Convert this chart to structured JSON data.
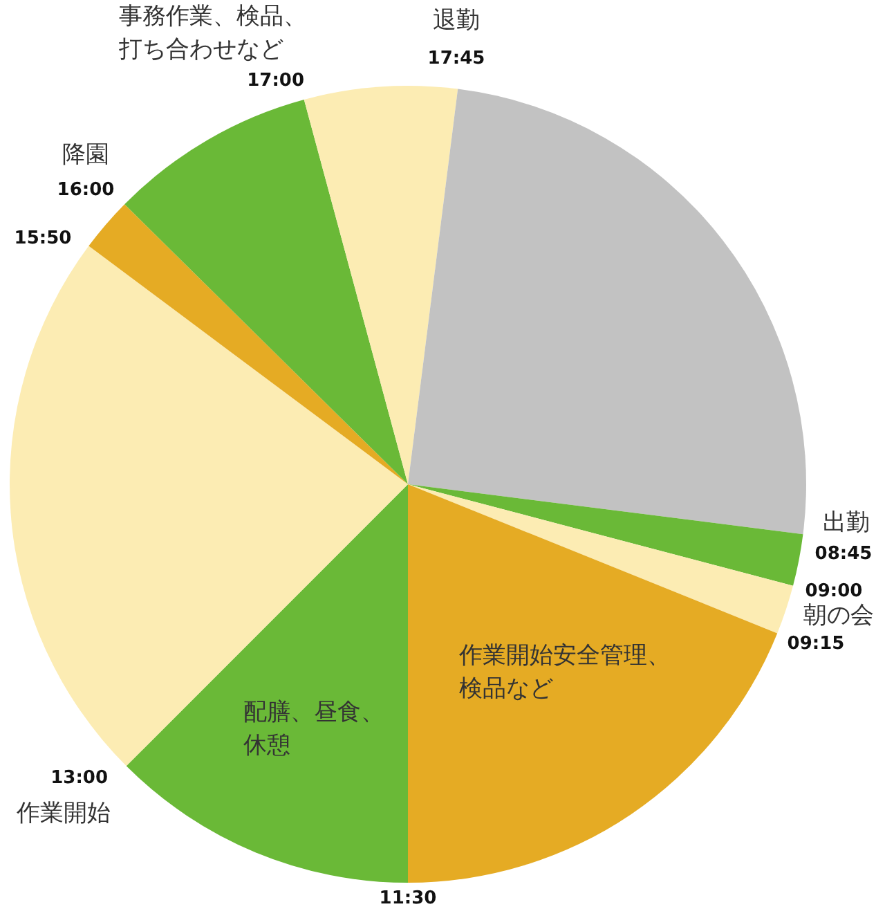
{
  "chart_data": {
    "type": "pie",
    "categories": [
      "配膳、昼食、休憩",
      "作業開始",
      null,
      "降園",
      "事務作業、検品、打ち合わせなど",
      "退勤",
      "出勤",
      "朝の会",
      "作業開始安全管理、検品など"
    ],
    "values": [
      12.5,
      22.7,
      2.2,
      8.4,
      6.2,
      25.0,
      2.1,
      2.0,
      18.9
    ],
    "colors": [
      "#6ab937",
      "#fcecb3",
      "#e5ab24",
      "#6ab937",
      "#fcecb3",
      "#c2c2c2",
      "#6ab937",
      "#fcecb3",
      "#e5ab24"
    ],
    "annotations": [
      "11:30",
      "13:00",
      "15:50",
      "16:00",
      "17:00",
      "17:45",
      "08:45",
      "09:00",
      "09:15"
    ]
  }
}
